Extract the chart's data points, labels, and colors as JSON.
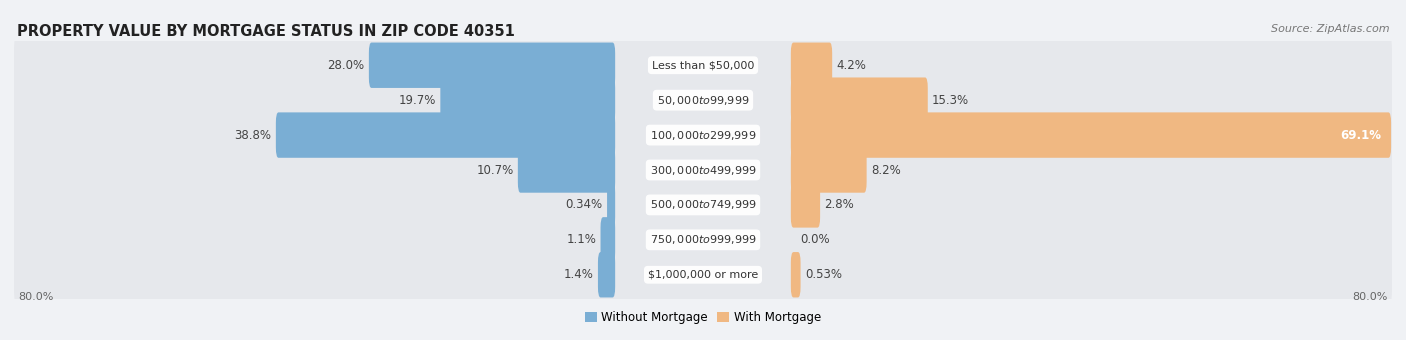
{
  "title": "PROPERTY VALUE BY MORTGAGE STATUS IN ZIP CODE 40351",
  "source": "Source: ZipAtlas.com",
  "categories": [
    "Less than $50,000",
    "$50,000 to $99,999",
    "$100,000 to $299,999",
    "$300,000 to $499,999",
    "$500,000 to $749,999",
    "$750,000 to $999,999",
    "$1,000,000 or more"
  ],
  "without_mortgage": [
    28.0,
    19.7,
    38.8,
    10.7,
    0.34,
    1.1,
    1.4
  ],
  "with_mortgage": [
    4.2,
    15.3,
    69.1,
    8.2,
    2.8,
    0.0,
    0.53
  ],
  "color_without": "#7aaed4",
  "color_with": "#f0b882",
  "axis_max": 80.0,
  "axis_label_left": "80.0%",
  "axis_label_right": "80.0%",
  "row_bg_color": "#e6e8ec",
  "row_bg_color_alt": "#eceef2",
  "background_color": "#f0f2f5",
  "title_fontsize": 10.5,
  "label_fontsize": 8.5,
  "cat_label_fontsize": 8.0
}
